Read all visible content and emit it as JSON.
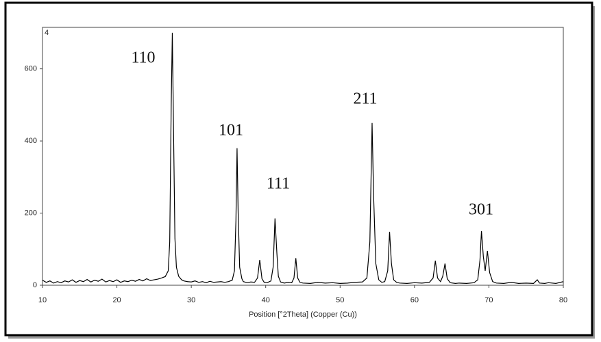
{
  "chart_data": {
    "type": "line",
    "xlabel": "Position [°2Theta] (Copper (Cu))",
    "corner_label": "4",
    "annotations": [
      "110",
      "101",
      "111",
      "211",
      "301"
    ],
    "xlim": [
      10,
      80
    ],
    "ylim": [
      0,
      715
    ],
    "xticks": [
      10,
      20,
      30,
      40,
      50,
      60,
      70,
      80
    ],
    "yticks": [
      0,
      200,
      400,
      600
    ],
    "series": [
      {
        "color": "#000000",
        "x": [
          10,
          10.5,
          11,
          11.5,
          12,
          12.5,
          13,
          13.5,
          14,
          14.5,
          15,
          15.5,
          16,
          16.5,
          17,
          17.5,
          18,
          18.5,
          19,
          19.5,
          20,
          20.5,
          21,
          21.5,
          22,
          22.5,
          23,
          23.5,
          24,
          24.5,
          25,
          25.5,
          26,
          26.5,
          26.9,
          27.1,
          27.3,
          27.45,
          27.6,
          27.8,
          28,
          28.3,
          28.7,
          29,
          29.5,
          30,
          30.5,
          31,
          31.5,
          32,
          32.5,
          33,
          33.5,
          34,
          34.5,
          35,
          35.5,
          35.8,
          36,
          36.15,
          36.3,
          36.5,
          36.8,
          37,
          37.5,
          38,
          38.5,
          38.9,
          39.2,
          39.5,
          39.8,
          40.2,
          40.7,
          41,
          41.25,
          41.5,
          41.7,
          42,
          42.5,
          43,
          43.5,
          43.8,
          44.05,
          44.3,
          44.6,
          45,
          46,
          47,
          48,
          49,
          50,
          51,
          52,
          53,
          53.6,
          54,
          54.3,
          54.5,
          54.8,
          55.2,
          55.6,
          56,
          56.4,
          56.65,
          56.9,
          57.2,
          57.6,
          58,
          59,
          60,
          61,
          62,
          62.5,
          62.8,
          63.1,
          63.5,
          63.8,
          64.1,
          64.4,
          64.8,
          65.5,
          66,
          67,
          68,
          68.5,
          68.8,
          69,
          69.25,
          69.5,
          69.8,
          70.1,
          70.5,
          71,
          72,
          73,
          74,
          75,
          76,
          76.5,
          76.8,
          77.5,
          78,
          79,
          80
        ],
        "values": [
          14,
          8,
          12,
          6,
          10,
          7,
          12,
          9,
          15,
          8,
          13,
          10,
          16,
          9,
          14,
          11,
          17,
          9,
          13,
          10,
          15,
          8,
          12,
          10,
          14,
          11,
          16,
          12,
          18,
          13,
          15,
          17,
          20,
          24,
          40,
          120,
          500,
          700,
          450,
          130,
          50,
          25,
          15,
          12,
          10,
          9,
          12,
          8,
          10,
          7,
          11,
          8,
          9,
          10,
          8,
          10,
          14,
          40,
          180,
          380,
          200,
          50,
          18,
          10,
          7,
          9,
          8,
          20,
          70,
          18,
          8,
          7,
          12,
          50,
          185,
          90,
          25,
          9,
          6,
          8,
          7,
          20,
          75,
          20,
          8,
          6,
          5,
          8,
          6,
          7,
          5,
          6,
          8,
          9,
          20,
          120,
          450,
          250,
          60,
          15,
          8,
          10,
          40,
          148,
          60,
          15,
          8,
          6,
          5,
          7,
          6,
          8,
          20,
          68,
          20,
          10,
          25,
          60,
          18,
          7,
          5,
          6,
          5,
          7,
          15,
          70,
          150,
          80,
          40,
          95,
          35,
          10,
          6,
          5,
          8,
          5,
          6,
          5,
          15,
          6,
          5,
          7,
          5,
          10
        ]
      }
    ]
  }
}
